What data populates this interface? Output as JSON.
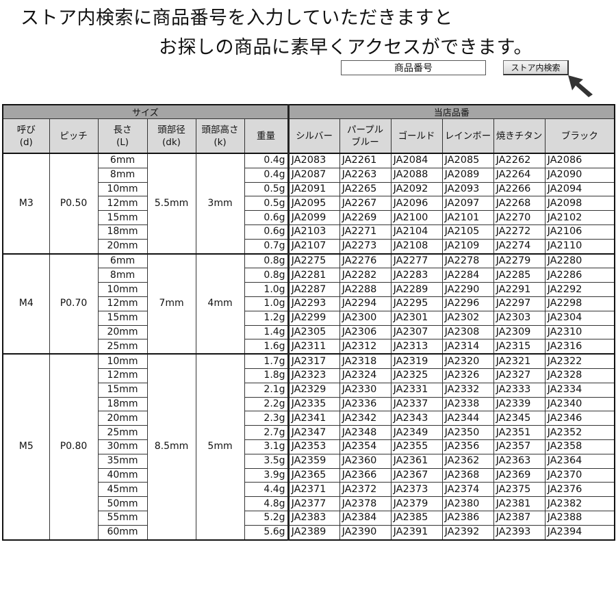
{
  "headline": {
    "line1": "ストア内検索に商品番号を入力していただきますと",
    "line2": "お探しの商品に素早くアクセスができます。"
  },
  "search": {
    "input_value": "商品番号",
    "button_label": "ストア内検索",
    "cursor_icon": "arrow-cursor-icon"
  },
  "table": {
    "group_headers": {
      "size": "サイズ",
      "codes": "当店品番"
    },
    "columns": [
      "呼び\n(d)",
      "ピッチ",
      "長さ\n(L)",
      "頭部径\n(dk)",
      "頭部高さ\n(k)",
      "重量",
      "シルバー",
      "パープル\nブルー",
      "ゴールド",
      "レインボー",
      "焼きチタン",
      "ブラック"
    ],
    "colors": {
      "header_dark": "#a5a5a5",
      "header_light": "#d9d9d9"
    },
    "groups": [
      {
        "d": "M3",
        "pitch": "P0.50",
        "dk": "5.5mm",
        "k": "3mm",
        "rows": [
          {
            "L": "6mm",
            "w": "0.4g",
            "codes": [
              "JA2083",
              "JA2261",
              "JA2084",
              "JA2085",
              "JA2262",
              "JA2086"
            ]
          },
          {
            "L": "8mm",
            "w": "0.4g",
            "codes": [
              "JA2087",
              "JA2263",
              "JA2088",
              "JA2089",
              "JA2264",
              "JA2090"
            ]
          },
          {
            "L": "10mm",
            "w": "0.5g",
            "codes": [
              "JA2091",
              "JA2265",
              "JA2092",
              "JA2093",
              "JA2266",
              "JA2094"
            ]
          },
          {
            "L": "12mm",
            "w": "0.5g",
            "codes": [
              "JA2095",
              "JA2267",
              "JA2096",
              "JA2097",
              "JA2268",
              "JA2098"
            ]
          },
          {
            "L": "15mm",
            "w": "0.6g",
            "codes": [
              "JA2099",
              "JA2269",
              "JA2100",
              "JA2101",
              "JA2270",
              "JA2102"
            ]
          },
          {
            "L": "18mm",
            "w": "0.6g",
            "codes": [
              "JA2103",
              "JA2271",
              "JA2104",
              "JA2105",
              "JA2272",
              "JA2106"
            ]
          },
          {
            "L": "20mm",
            "w": "0.7g",
            "codes": [
              "JA2107",
              "JA2273",
              "JA2108",
              "JA2109",
              "JA2274",
              "JA2110"
            ]
          }
        ]
      },
      {
        "d": "M4",
        "pitch": "P0.70",
        "dk": "7mm",
        "k": "4mm",
        "rows": [
          {
            "L": "6mm",
            "w": "0.8g",
            "codes": [
              "JA2275",
              "JA2276",
              "JA2277",
              "JA2278",
              "JA2279",
              "JA2280"
            ]
          },
          {
            "L": "8mm",
            "w": "0.8g",
            "codes": [
              "JA2281",
              "JA2282",
              "JA2283",
              "JA2284",
              "JA2285",
              "JA2286"
            ]
          },
          {
            "L": "10mm",
            "w": "1.0g",
            "codes": [
              "JA2287",
              "JA2288",
              "JA2289",
              "JA2290",
              "JA2291",
              "JA2292"
            ]
          },
          {
            "L": "12mm",
            "w": "1.0g",
            "codes": [
              "JA2293",
              "JA2294",
              "JA2295",
              "JA2296",
              "JA2297",
              "JA2298"
            ]
          },
          {
            "L": "15mm",
            "w": "1.2g",
            "codes": [
              "JA2299",
              "JA2300",
              "JA2301",
              "JA2302",
              "JA2303",
              "JA2304"
            ]
          },
          {
            "L": "20mm",
            "w": "1.4g",
            "codes": [
              "JA2305",
              "JA2306",
              "JA2307",
              "JA2308",
              "JA2309",
              "JA2310"
            ]
          },
          {
            "L": "25mm",
            "w": "1.6g",
            "codes": [
              "JA2311",
              "JA2312",
              "JA2313",
              "JA2314",
              "JA2315",
              "JA2316"
            ]
          }
        ]
      },
      {
        "d": "M5",
        "pitch": "P0.80",
        "dk": "8.5mm",
        "k": "5mm",
        "rows": [
          {
            "L": "10mm",
            "w": "1.7g",
            "codes": [
              "JA2317",
              "JA2318",
              "JA2319",
              "JA2320",
              "JA2321",
              "JA2322"
            ]
          },
          {
            "L": "12mm",
            "w": "1.8g",
            "codes": [
              "JA2323",
              "JA2324",
              "JA2325",
              "JA2326",
              "JA2327",
              "JA2328"
            ]
          },
          {
            "L": "15mm",
            "w": "2.1g",
            "codes": [
              "JA2329",
              "JA2330",
              "JA2331",
              "JA2332",
              "JA2333",
              "JA2334"
            ]
          },
          {
            "L": "18mm",
            "w": "2.2g",
            "codes": [
              "JA2335",
              "JA2336",
              "JA2337",
              "JA2338",
              "JA2339",
              "JA2340"
            ]
          },
          {
            "L": "20mm",
            "w": "2.3g",
            "codes": [
              "JA2341",
              "JA2342",
              "JA2343",
              "JA2344",
              "JA2345",
              "JA2346"
            ]
          },
          {
            "L": "25mm",
            "w": "2.7g",
            "codes": [
              "JA2347",
              "JA2348",
              "JA2349",
              "JA2350",
              "JA2351",
              "JA2352"
            ]
          },
          {
            "L": "30mm",
            "w": "3.1g",
            "codes": [
              "JA2353",
              "JA2354",
              "JA2355",
              "JA2356",
              "JA2357",
              "JA2358"
            ]
          },
          {
            "L": "35mm",
            "w": "3.5g",
            "codes": [
              "JA2359",
              "JA2360",
              "JA2361",
              "JA2362",
              "JA2363",
              "JA2364"
            ]
          },
          {
            "L": "40mm",
            "w": "3.9g",
            "codes": [
              "JA2365",
              "JA2366",
              "JA2367",
              "JA2368",
              "JA2369",
              "JA2370"
            ]
          },
          {
            "L": "45mm",
            "w": "4.4g",
            "codes": [
              "JA2371",
              "JA2372",
              "JA2373",
              "JA2374",
              "JA2375",
              "JA2376"
            ]
          },
          {
            "L": "50mm",
            "w": "4.8g",
            "codes": [
              "JA2377",
              "JA2378",
              "JA2379",
              "JA2380",
              "JA2381",
              "JA2382"
            ]
          },
          {
            "L": "55mm",
            "w": "5.2g",
            "codes": [
              "JA2383",
              "JA2384",
              "JA2385",
              "JA2386",
              "JA2387",
              "JA2388"
            ]
          },
          {
            "L": "60mm",
            "w": "5.6g",
            "codes": [
              "JA2389",
              "JA2390",
              "JA2391",
              "JA2392",
              "JA2393",
              "JA2394"
            ]
          }
        ]
      }
    ]
  }
}
